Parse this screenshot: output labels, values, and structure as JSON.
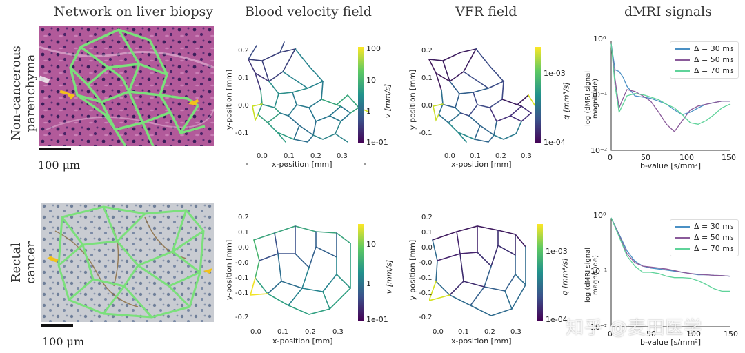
{
  "column_titles": [
    "Network on liver biopsy",
    "Blood velocity field",
    "VFR field",
    "dMRI signals"
  ],
  "row_labels": [
    [
      "Non-cancerous",
      "parenchyma"
    ],
    [
      "Rectal",
      "cancer"
    ]
  ],
  "scale_bar_label": "100 μm",
  "watermark": "知乎 @麦田医学",
  "rows": [
    {
      "velocity": {
        "xlabel": "x-position [mm]",
        "ylabel": "y-position [mm]",
        "xticks": [
          "0.0",
          "0.1",
          "0.2",
          "0.3"
        ],
        "yticks": [
          "0.2",
          "0.1",
          "0.0",
          "-0.1"
        ],
        "cbar_label": "v [mm/s]",
        "cbar_ticks": [
          "100",
          "10",
          "1",
          "1e-01"
        ]
      },
      "vfr": {
        "xlabel": "x-position [mm]",
        "ylabel": "y-position [mm]",
        "xticks": [
          "0.0",
          "0.1",
          "0.2",
          "0.3"
        ],
        "yticks": [
          "0.2",
          "0.1",
          "0.0",
          "-0.1"
        ],
        "cbar_label": "q [mm³/s]",
        "cbar_ticks": [
          "1e-03",
          "1e-04"
        ]
      },
      "dmri": {
        "xlabel": "b-value [s/mm²]",
        "ylabel": "log (dMRI signal magnitude)",
        "xticks": [
          "0",
          "50",
          "100",
          "150"
        ],
        "yticks": [
          "10⁰",
          "10⁻¹",
          "10⁻²"
        ],
        "legend": [
          "Δ = 30 ms",
          "Δ = 50 ms",
          "Δ = 70 ms"
        ]
      }
    },
    {
      "velocity": {
        "xlabel": "x-position [mm]",
        "ylabel": "y-position [mm]",
        "xticks": [
          "0.0",
          "0.1",
          "0.2",
          "0.3"
        ],
        "yticks": [
          "0.2",
          "0.1",
          "0.0",
          "-0.0",
          "-0.1",
          "-0.1",
          "-0.2"
        ],
        "cbar_label": "v [mm/s]",
        "cbar_ticks": [
          "10",
          "1",
          "1e-01"
        ]
      },
      "vfr": {
        "xlabel": "x-position [mm]",
        "ylabel": "y-position [mm]",
        "xticks": [
          "0.0",
          "0.1",
          "0.2",
          "0.3"
        ],
        "yticks": [
          "0.2",
          "0.1",
          "0.0",
          "-0.0",
          "-0.1",
          "-0.1",
          "-0.2"
        ],
        "cbar_label": "q [mm³/s]",
        "cbar_ticks": [
          "1e-03",
          "1e-04"
        ]
      },
      "dmri": {
        "xlabel": "b-value [s/mm²]",
        "ylabel": "log (dMRI signal magnitude)",
        "xticks": [
          "0",
          "50",
          "100",
          "150"
        ],
        "yticks": [
          "10⁰",
          "10⁻¹",
          "10⁻²"
        ],
        "legend": [
          "Δ = 30 ms",
          "Δ = 50 ms",
          "Δ = 70 ms"
        ]
      }
    }
  ],
  "colors": {
    "series": [
      "#4a90c4",
      "#8a5a9a",
      "#5fd39a"
    ],
    "network_green": "#7be07b",
    "arrow_yellow": "#f2c21b"
  },
  "chart_data": [
    {
      "type": "line",
      "xlabel": "b-value [s/mm²]",
      "ylabel": "log (dMRI signal magnitude)",
      "xlim": [
        0,
        150
      ],
      "ylim": [
        0.01,
        1
      ],
      "yscale": "log",
      "legend_position": "top-right",
      "series": [
        {
          "name": "Δ = 30 ms",
          "x": [
            0,
            5,
            10,
            15,
            20,
            30,
            40,
            50,
            60,
            70,
            80,
            90,
            100,
            110,
            120,
            130,
            140,
            150
          ],
          "values": [
            0.9,
            0.3,
            0.28,
            0.22,
            0.15,
            0.1,
            0.095,
            0.09,
            0.08,
            0.07,
            0.055,
            0.045,
            0.05,
            0.06,
            0.07,
            0.075,
            0.08,
            0.08
          ]
        },
        {
          "name": "Δ = 50 ms",
          "x": [
            0,
            5,
            10,
            15,
            20,
            30,
            40,
            50,
            60,
            70,
            80,
            90,
            100,
            110,
            120,
            130,
            140,
            150
          ],
          "values": [
            0.9,
            0.2,
            0.06,
            0.09,
            0.13,
            0.12,
            0.1,
            0.08,
            0.05,
            0.03,
            0.022,
            0.035,
            0.055,
            0.065,
            0.07,
            0.075,
            0.08,
            0.08
          ]
        },
        {
          "name": "Δ = 70 ms",
          "x": [
            0,
            5,
            10,
            15,
            20,
            30,
            40,
            50,
            60,
            70,
            80,
            90,
            100,
            110,
            120,
            130,
            140,
            150
          ],
          "values": [
            0.9,
            0.15,
            0.05,
            0.07,
            0.1,
            0.11,
            0.105,
            0.095,
            0.085,
            0.07,
            0.06,
            0.045,
            0.032,
            0.03,
            0.035,
            0.045,
            0.06,
            0.07
          ]
        }
      ]
    },
    {
      "type": "line",
      "xlabel": "b-value [s/mm²]",
      "ylabel": "log (dMRI signal magnitude)",
      "xlim": [
        0,
        150
      ],
      "ylim": [
        0.01,
        1
      ],
      "yscale": "log",
      "legend_position": "top-right",
      "series": [
        {
          "name": "Δ = 30 ms",
          "x": [
            0,
            10,
            20,
            30,
            40,
            50,
            60,
            70,
            80,
            90,
            100,
            110,
            120,
            130,
            140,
            150
          ],
          "values": [
            1.0,
            0.5,
            0.25,
            0.16,
            0.13,
            0.12,
            0.115,
            0.11,
            0.105,
            0.1,
            0.095,
            0.09,
            0.09,
            0.088,
            0.087,
            0.085
          ]
        },
        {
          "name": "Δ = 50 ms",
          "x": [
            0,
            10,
            20,
            30,
            40,
            50,
            60,
            70,
            80,
            90,
            100,
            110,
            120,
            130,
            140,
            150
          ],
          "values": [
            1.0,
            0.48,
            0.22,
            0.15,
            0.13,
            0.125,
            0.12,
            0.115,
            0.108,
            0.1,
            0.095,
            0.092,
            0.09,
            0.088,
            0.087,
            0.085
          ]
        },
        {
          "name": "Δ = 70 ms",
          "x": [
            0,
            10,
            20,
            30,
            40,
            50,
            60,
            70,
            80,
            90,
            100,
            110,
            120,
            130,
            140,
            150
          ],
          "values": [
            1.0,
            0.45,
            0.2,
            0.13,
            0.1,
            0.1,
            0.095,
            0.085,
            0.08,
            0.08,
            0.078,
            0.07,
            0.06,
            0.05,
            0.045,
            0.045
          ]
        }
      ]
    }
  ]
}
